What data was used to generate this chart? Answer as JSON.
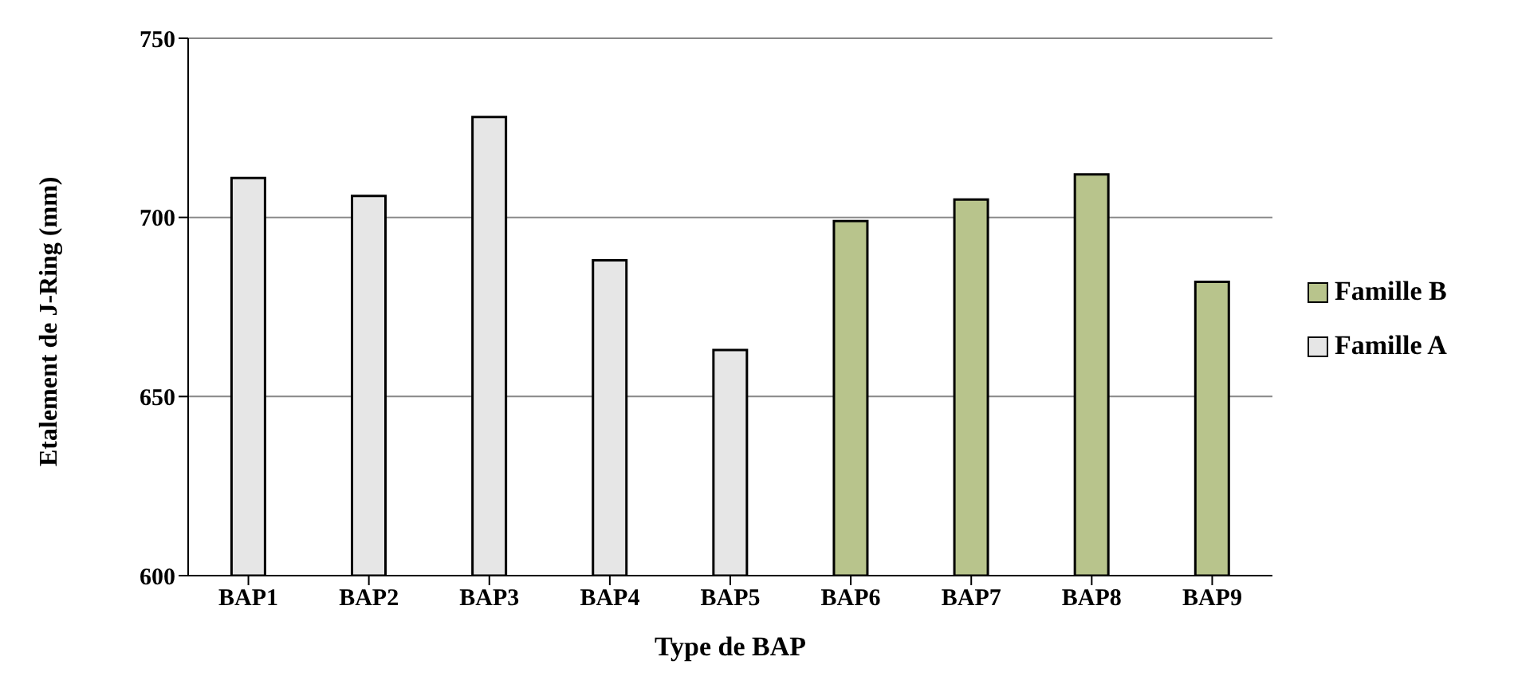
{
  "chart_data": {
    "type": "bar",
    "xlabel": "Type de BAP",
    "ylabel": "Etalement de J-Ring (mm)",
    "categories": [
      "BAP1",
      "BAP2",
      "BAP3",
      "BAP4",
      "BAP5",
      "BAP6",
      "BAP7",
      "BAP8",
      "BAP9"
    ],
    "series": [
      {
        "name": "Famille B",
        "color": "#b8c48c",
        "values": [
          null,
          null,
          null,
          null,
          null,
          699,
          705,
          712,
          682
        ]
      },
      {
        "name": "Famille A",
        "color": "#e6e6e6",
        "values": [
          711,
          706,
          728,
          688,
          663,
          null,
          null,
          null,
          null
        ]
      }
    ],
    "ylim": [
      600,
      750
    ],
    "yticks": [
      600,
      650,
      700,
      750
    ],
    "grid": "y",
    "legend": "right"
  }
}
